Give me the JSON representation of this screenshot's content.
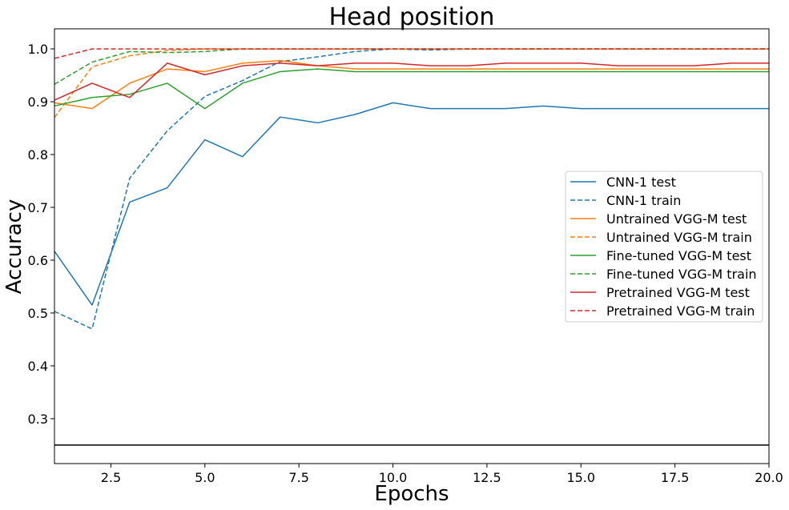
{
  "chart_data": {
    "type": "line",
    "title": "Head position",
    "xlabel": "Epochs",
    "ylabel": "Accuracy",
    "xlim": [
      1,
      20
    ],
    "ylim": [
      0.215,
      1.038
    ],
    "xticks": [
      2.5,
      5.0,
      7.5,
      10.0,
      12.5,
      15.0,
      17.5,
      20.0
    ],
    "xtick_labels": [
      "2.5",
      "5.0",
      "7.5",
      "10.0",
      "12.5",
      "15.0",
      "17.5",
      "20.0"
    ],
    "yticks": [
      0.3,
      0.4,
      0.5,
      0.6,
      0.7,
      0.8,
      0.9,
      1.0
    ],
    "ytick_labels": [
      "0.3",
      "0.4",
      "0.5",
      "0.6",
      "0.7",
      "0.8",
      "0.9",
      "1.0"
    ],
    "grid": false,
    "legend_position": "center-right",
    "baseline": {
      "y": 0.25,
      "color": "#000000"
    },
    "x": [
      1,
      2,
      3,
      4,
      5,
      6,
      7,
      8,
      9,
      10,
      11,
      12,
      13,
      14,
      15,
      16,
      17,
      18,
      19,
      20
    ],
    "series": [
      {
        "name": "CNN-1 test",
        "color": "#1f77b4",
        "dash": "solid",
        "values": [
          0.617,
          0.515,
          0.71,
          0.737,
          0.828,
          0.796,
          0.871,
          0.86,
          0.876,
          0.898,
          0.887,
          0.887,
          0.887,
          0.892,
          0.887,
          0.887,
          0.887,
          0.887,
          0.887,
          0.887
        ]
      },
      {
        "name": "CNN-1 train",
        "color": "#1f77b4",
        "dash": "dashed",
        "values": [
          0.503,
          0.47,
          0.755,
          0.845,
          0.91,
          0.94,
          0.976,
          0.985,
          0.995,
          1.0,
          0.998,
          1.0,
          1.0,
          1.0,
          1.0,
          1.0,
          1.0,
          1.0,
          1.0,
          1.0
        ]
      },
      {
        "name": "Untrained VGG-M test",
        "color": "#ff7f0e",
        "dash": "solid",
        "values": [
          0.898,
          0.887,
          0.935,
          0.962,
          0.957,
          0.973,
          0.978,
          0.968,
          0.962,
          0.962,
          0.962,
          0.962,
          0.962,
          0.962,
          0.962,
          0.962,
          0.962,
          0.962,
          0.962,
          0.962
        ]
      },
      {
        "name": "Untrained VGG-M train",
        "color": "#ff7f0e",
        "dash": "dashed",
        "values": [
          0.87,
          0.966,
          0.987,
          0.997,
          1.0,
          1.0,
          1.0,
          1.0,
          1.0,
          1.0,
          1.0,
          1.0,
          1.0,
          1.0,
          1.0,
          1.0,
          1.0,
          1.0,
          1.0,
          1.0
        ]
      },
      {
        "name": "Fine-tuned VGG-M test",
        "color": "#2ca02c",
        "dash": "solid",
        "values": [
          0.892,
          0.908,
          0.914,
          0.935,
          0.887,
          0.935,
          0.957,
          0.962,
          0.957,
          0.957,
          0.957,
          0.957,
          0.957,
          0.957,
          0.957,
          0.957,
          0.957,
          0.957,
          0.957,
          0.957
        ]
      },
      {
        "name": "Fine-tuned VGG-M train",
        "color": "#2ca02c",
        "dash": "dashed",
        "values": [
          0.933,
          0.975,
          0.995,
          0.993,
          0.995,
          1.0,
          1.0,
          1.0,
          1.0,
          1.0,
          1.0,
          1.0,
          1.0,
          1.0,
          1.0,
          1.0,
          1.0,
          1.0,
          1.0,
          1.0
        ]
      },
      {
        "name": "Pretrained VGG-M test",
        "color": "#d62728",
        "dash": "solid",
        "values": [
          0.903,
          0.935,
          0.908,
          0.973,
          0.951,
          0.968,
          0.973,
          0.968,
          0.973,
          0.973,
          0.968,
          0.968,
          0.973,
          0.973,
          0.973,
          0.968,
          0.968,
          0.968,
          0.973,
          0.973
        ]
      },
      {
        "name": "Pretrained VGG-M train",
        "color": "#d62728",
        "dash": "dashed",
        "values": [
          0.982,
          1.0,
          1.0,
          1.0,
          1.0,
          1.0,
          1.0,
          1.0,
          1.0,
          1.0,
          1.0,
          1.0,
          1.0,
          1.0,
          1.0,
          1.0,
          1.0,
          1.0,
          1.0,
          1.0
        ]
      }
    ]
  }
}
